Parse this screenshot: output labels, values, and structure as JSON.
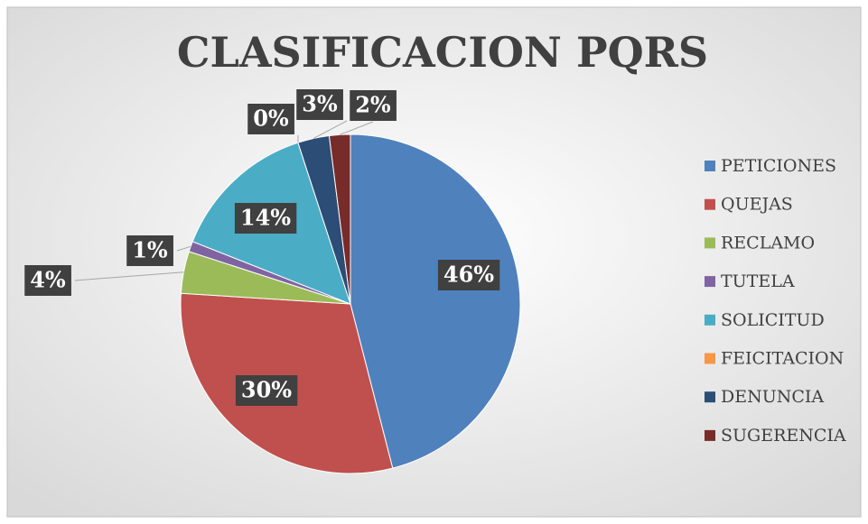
{
  "chart_data": {
    "type": "pie",
    "title": "CLASIFICACION PQRS",
    "categories": [
      "PETICIONES",
      "QUEJAS",
      "RECLAMO",
      "TUTELA",
      "SOLICITUD",
      "FEICITACION",
      "DENUNCIA",
      "SUGERENCIA"
    ],
    "values": [
      46,
      30,
      4,
      1,
      14,
      0,
      3,
      2
    ],
    "value_labels": [
      "46%",
      "30%",
      "4%",
      "1%",
      "14%",
      "0%",
      "3%",
      "2%"
    ],
    "colors": [
      "#4f81bd",
      "#c0504d",
      "#9bbb59",
      "#8064a2",
      "#4bacc6",
      "#f79646",
      "#2c4d75",
      "#772c2a"
    ],
    "legend": "right"
  }
}
